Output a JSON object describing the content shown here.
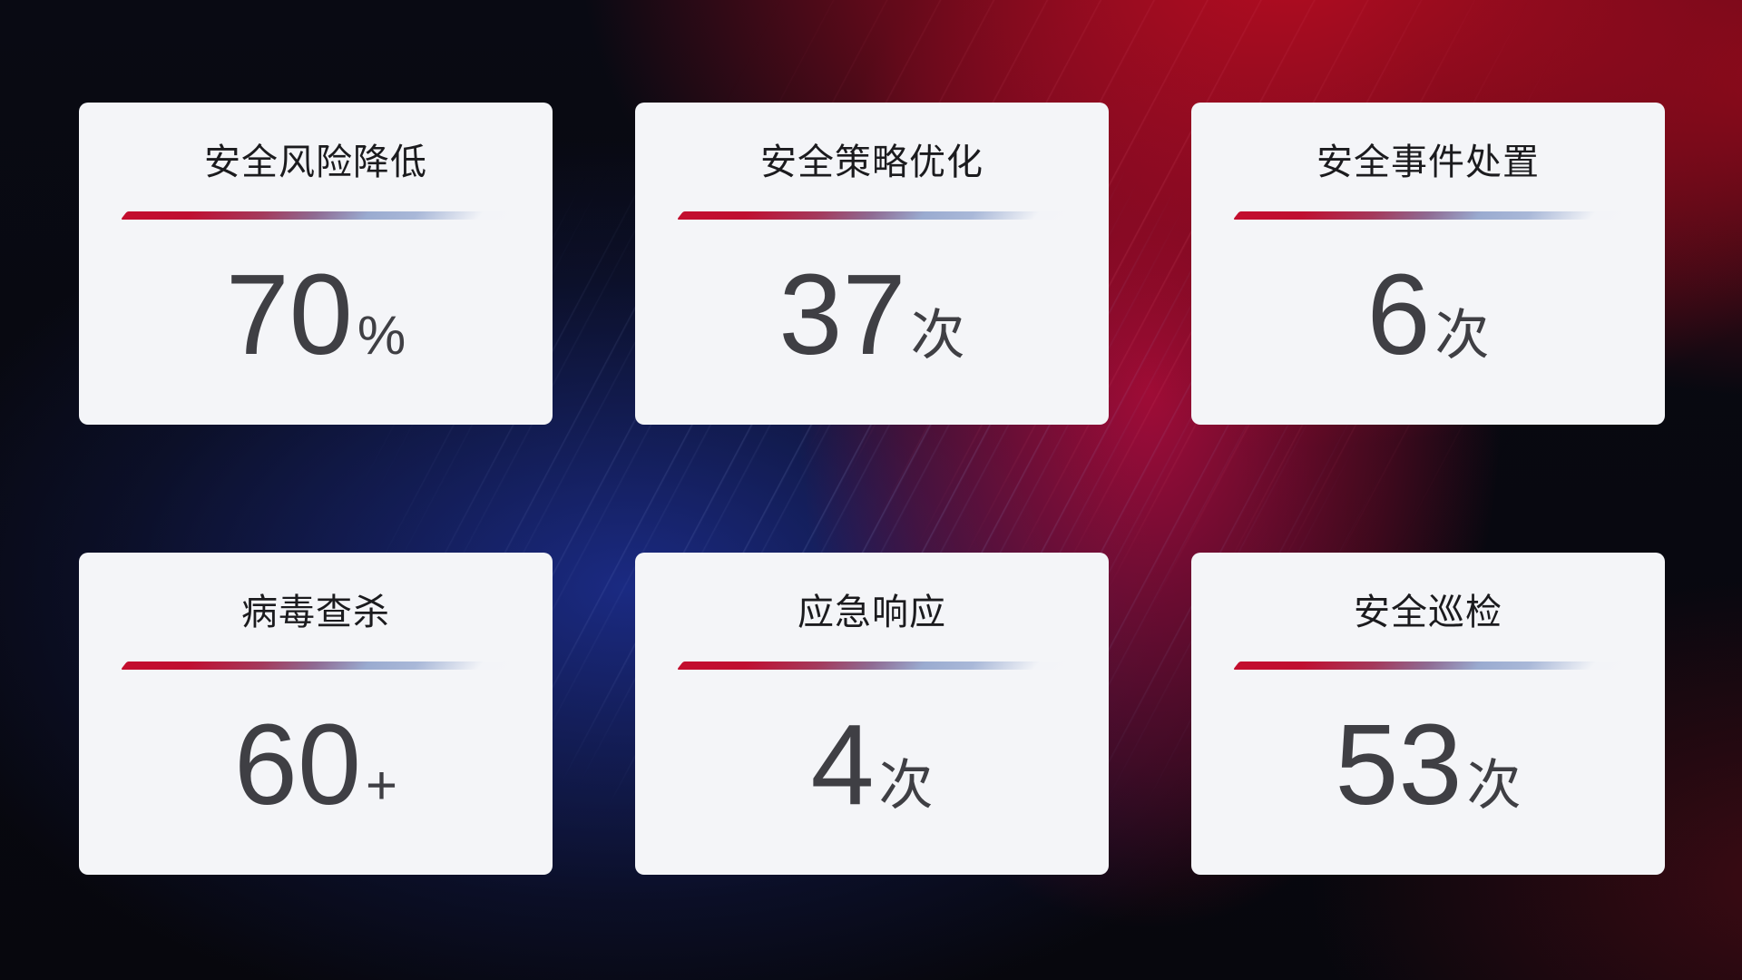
{
  "colors": {
    "card_bg": "#f4f5f8",
    "title_color": "#1b1b1e",
    "number_color": "#3f3f44",
    "divider_red": "#c30e2e",
    "divider_blue": "#a9b8d8"
  },
  "cards": [
    {
      "title": "安全风险降低",
      "value": "70",
      "unit": "%"
    },
    {
      "title": "安全策略优化",
      "value": "37",
      "unit": "次"
    },
    {
      "title": "安全事件处置",
      "value": "6",
      "unit": "次"
    },
    {
      "title": "病毒查杀",
      "value": "60",
      "unit": "+"
    },
    {
      "title": "应急响应",
      "value": "4",
      "unit": "次"
    },
    {
      "title": "安全巡检",
      "value": "53",
      "unit": "次"
    }
  ]
}
